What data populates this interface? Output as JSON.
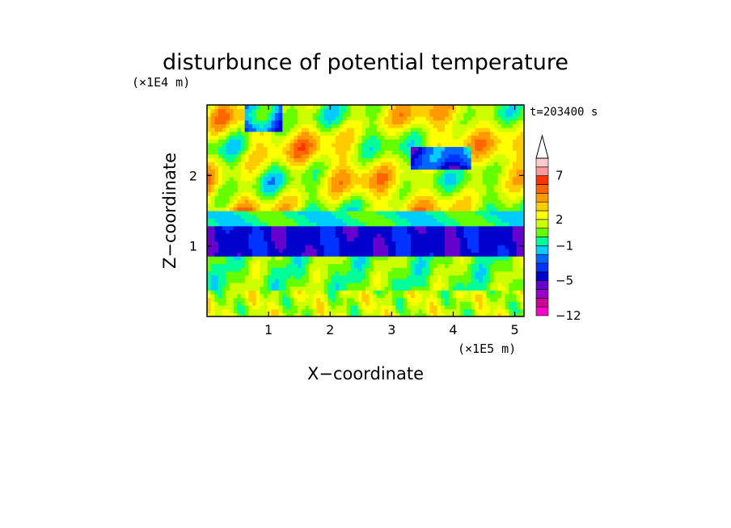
{
  "chart_data": {
    "type": "heatmap",
    "title": "disturbunce of potential temperature",
    "xlabel": "X−coordinate",
    "ylabel": "Z−coordinate",
    "x_scale_label": "(×1E5 m)",
    "y_scale_label": "(×1E4 m)",
    "time_label": "t=203400 s",
    "xlim": [
      0,
      5.15
    ],
    "ylim": [
      0,
      3.0
    ],
    "xticks": [
      1,
      2,
      3,
      4,
      5
    ],
    "xtick_labels": [
      "1",
      "2",
      "3",
      "4",
      "5"
    ],
    "yticks": [
      1,
      2
    ],
    "ytick_labels": [
      "1",
      "2"
    ],
    "colorbar": {
      "levels": [
        -12,
        -10,
        -8,
        -6,
        -5,
        -4,
        -3,
        -2,
        -1,
        0,
        1,
        2,
        3,
        4,
        5,
        6,
        7,
        8,
        9,
        10
      ],
      "tick_values": [
        -12,
        -5,
        -1,
        2,
        7
      ],
      "tick_labels": [
        "−12",
        "−5",
        "−1",
        "2",
        "7"
      ],
      "colors": [
        "#ff00cc",
        "#cc0099",
        "#9900cc",
        "#6600cc",
        "#0000cc",
        "#0033ff",
        "#0066ff",
        "#00ccff",
        "#00ff99",
        "#66ff00",
        "#ccff00",
        "#ffff00",
        "#ffcc00",
        "#ff9900",
        "#ff6600",
        "#ff3300",
        "#ff9999",
        "#ffcccc"
      ],
      "extend_top": true
    },
    "field_description_bands": [
      {
        "z_range": [
          0.0,
          0.4
        ],
        "typical_value": 1.5
      },
      {
        "z_range": [
          0.4,
          0.85
        ],
        "typical_value": 0.5
      },
      {
        "z_range": [
          0.85,
          1.3
        ],
        "typical_value": -4.5
      },
      {
        "z_range": [
          1.3,
          1.5
        ],
        "typical_value": -0.5
      },
      {
        "z_range": [
          1.5,
          3.0
        ],
        "typical_value": 3.0
      }
    ]
  }
}
